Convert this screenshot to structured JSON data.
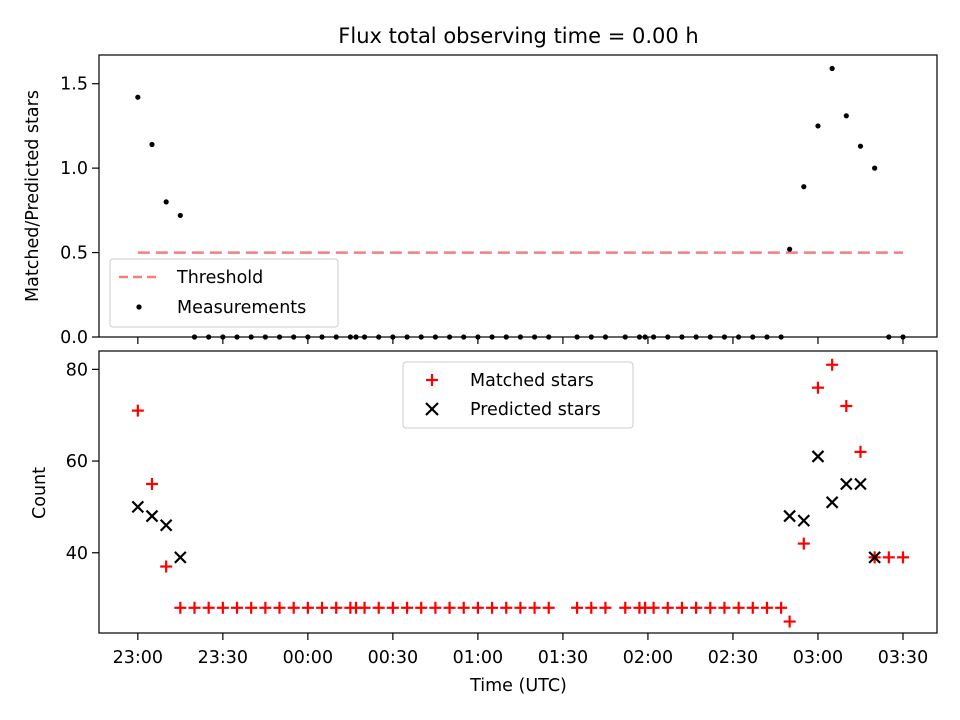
{
  "title": "Flux total observing time = 0.00 h",
  "xlabel": "Time (UTC)",
  "x_ticks": [
    {
      "min": -60,
      "label": "23:00"
    },
    {
      "min": -30,
      "label": "23:30"
    },
    {
      "min": 0,
      "label": "00:00"
    },
    {
      "min": 30,
      "label": "00:30"
    },
    {
      "min": 60,
      "label": "01:00"
    },
    {
      "min": 90,
      "label": "01:30"
    },
    {
      "min": 120,
      "label": "02:00"
    },
    {
      "min": 150,
      "label": "02:30"
    },
    {
      "min": 180,
      "label": "03:00"
    },
    {
      "min": 210,
      "label": "03:30"
    }
  ],
  "chart_data": [
    {
      "type": "scatter",
      "ylabel": "Matched/Predicted stars",
      "ylim": [
        0,
        1.67
      ],
      "y_ticks": [
        "0.0",
        "0.5",
        "1.0",
        "1.5"
      ],
      "legend_position": "lower-left",
      "threshold": {
        "name": "Threshold",
        "value": 0.5,
        "x_range": [
          -60,
          210
        ],
        "color": "#f08080"
      },
      "series": [
        {
          "name": "Measurements",
          "color": "#000000",
          "x": [
            -60,
            -55,
            -50,
            -45,
            -40,
            -35,
            -30,
            -25,
            -20,
            -15,
            -10,
            -5,
            0,
            5,
            10,
            15,
            17,
            20,
            25,
            30,
            35,
            40,
            45,
            50,
            55,
            60,
            65,
            70,
            75,
            80,
            85,
            95,
            100,
            105,
            112,
            117,
            119,
            122,
            127,
            132,
            137,
            142,
            147,
            152,
            157,
            162,
            167,
            170,
            175,
            180,
            185,
            190,
            195,
            200,
            205,
            210
          ],
          "y": [
            1.42,
            1.14,
            0.8,
            0.72,
            0,
            0,
            0,
            0,
            0,
            0,
            0,
            0,
            0,
            0,
            0,
            0,
            0,
            0,
            0,
            0,
            0,
            0,
            0,
            0,
            0,
            0,
            0,
            0,
            0,
            0,
            0,
            0,
            0,
            0,
            0,
            0,
            0,
            0,
            0,
            0,
            0,
            0,
            0,
            0,
            0,
            0,
            0,
            0.52,
            0.89,
            1.25,
            1.59,
            1.31,
            1.13,
            1.0,
            0,
            0
          ]
        }
      ]
    },
    {
      "type": "scatter",
      "ylabel": "Count",
      "ylim": [
        22.5,
        84
      ],
      "y_ticks": [
        "40",
        "60",
        "80"
      ],
      "legend_position": "top-center",
      "series": [
        {
          "name": "Matched stars",
          "marker": "+",
          "color": "#ff0000",
          "x": [
            -60,
            -55,
            -50,
            -45,
            -40,
            -35,
            -30,
            -25,
            -20,
            -15,
            -10,
            -5,
            0,
            5,
            10,
            15,
            17,
            20,
            25,
            30,
            35,
            40,
            45,
            50,
            55,
            60,
            65,
            70,
            75,
            80,
            85,
            95,
            100,
            105,
            112,
            117,
            119,
            122,
            127,
            132,
            137,
            142,
            147,
            152,
            157,
            162,
            167,
            170,
            175,
            180,
            185,
            190,
            195,
            200,
            205,
            210
          ],
          "y": [
            71,
            55,
            37,
            28,
            28,
            28,
            28,
            28,
            28,
            28,
            28,
            28,
            28,
            28,
            28,
            28,
            28,
            28,
            28,
            28,
            28,
            28,
            28,
            28,
            28,
            28,
            28,
            28,
            28,
            28,
            28,
            28,
            28,
            28,
            28,
            28,
            28,
            28,
            28,
            28,
            28,
            28,
            28,
            28,
            28,
            28,
            28,
            25,
            42,
            76,
            81,
            72,
            62,
            39,
            39,
            39
          ]
        },
        {
          "name": "Predicted stars",
          "marker": "x",
          "color": "#000000",
          "x": [
            -60,
            -55,
            -50,
            -45,
            170,
            175,
            180,
            185,
            190,
            195,
            200
          ],
          "y": [
            50,
            48,
            46,
            39,
            48,
            47,
            61,
            51,
            55,
            55,
            39
          ]
        }
      ]
    }
  ]
}
